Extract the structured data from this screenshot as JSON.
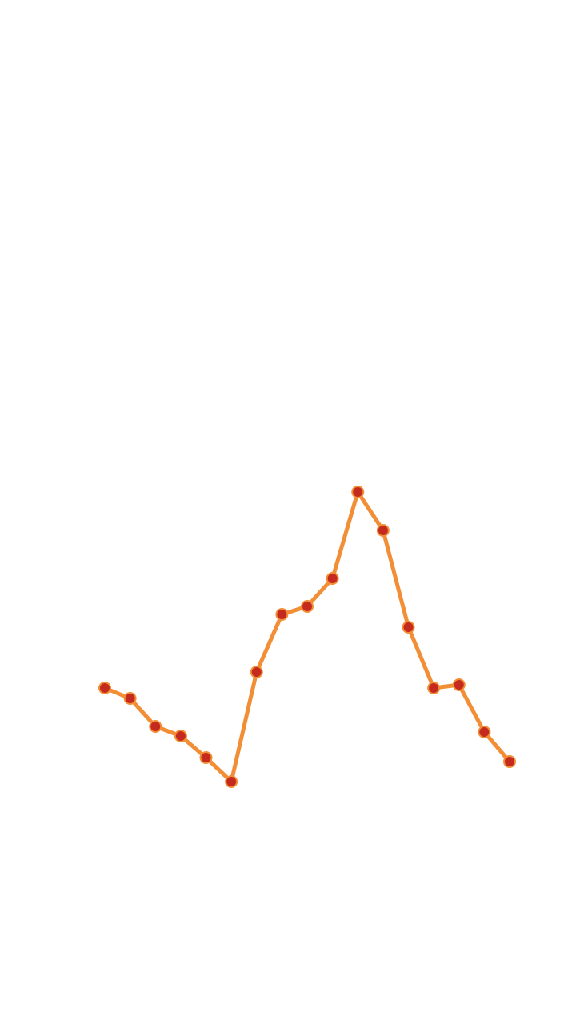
{
  "chart_data": {
    "type": "line",
    "categories": [
      null,
      null,
      null,
      null,
      null,
      null,
      null,
      null,
      null,
      null,
      null,
      null,
      null,
      null,
      null,
      null,
      null
    ],
    "values": [
      14,
      12.7,
      9.2,
      8,
      5.3,
      2.3,
      16,
      23.2,
      24.2,
      27.7,
      38.5,
      33.7,
      21.6,
      14,
      14.4,
      8.5,
      4.8
    ],
    "ylim": [
      0,
      40
    ],
    "color": "#f28e35",
    "marker_color": "#c42b1e"
  }
}
